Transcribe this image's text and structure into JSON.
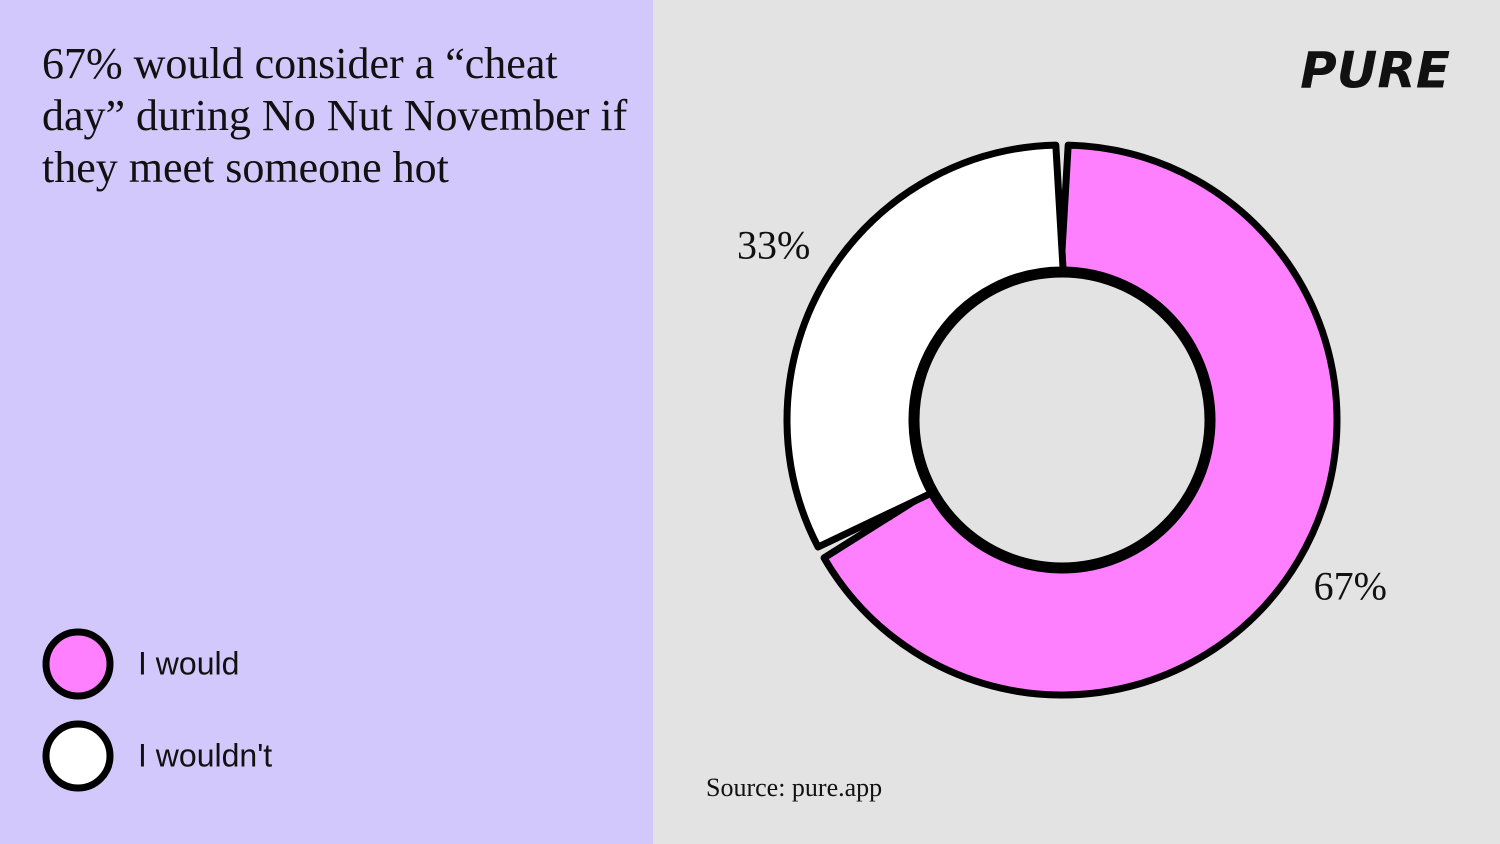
{
  "brand": "PURE",
  "chart_data": {
    "type": "pie",
    "donut": true,
    "title": "67% would consider a “cheat day” during No Nut November if they meet someone hot",
    "categories": [
      "I would",
      "I wouldn't"
    ],
    "values": [
      67,
      33
    ],
    "value_labels": [
      "67%",
      "33%"
    ],
    "colors": [
      "#ff80ff",
      "#ffffff"
    ],
    "source": "Source: pure.app"
  }
}
